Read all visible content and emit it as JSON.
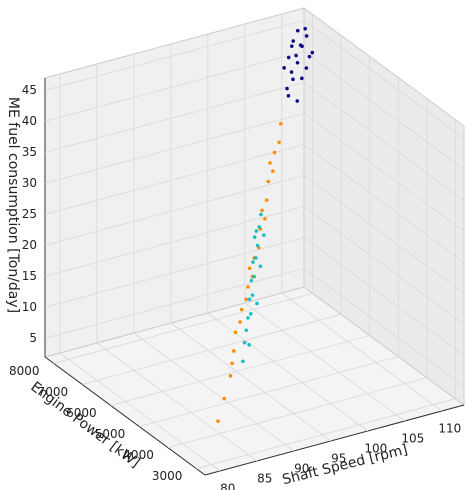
{
  "chart_data": {
    "type": "scatter3d",
    "xlabel": "Shaft Speed [rpm]",
    "ylabel": "Engine Power [kW]",
    "zlabel": "ME fuel consumption [Ton/day]",
    "xlim": [
      78,
      113
    ],
    "ylim": [
      2700,
      8300
    ],
    "zlim": [
      2,
      47
    ],
    "xticks": [
      80,
      85,
      90,
      95,
      100,
      105,
      110
    ],
    "yticks": [
      3000,
      4000,
      5000,
      6000,
      7000,
      8000
    ],
    "zticks": [
      5,
      10,
      15,
      20,
      25,
      30,
      35,
      40,
      45
    ],
    "grid": true,
    "series": [
      {
        "color": "#0b0b85",
        "x": [
          108,
          109,
          110,
          111,
          112,
          109,
          110,
          111,
          112,
          108,
          110,
          111,
          109,
          112,
          110,
          111,
          108,
          109,
          110,
          112
        ],
        "y": [
          7600,
          7700,
          7800,
          7900,
          8000,
          7650,
          7750,
          7850,
          7950,
          7550,
          7900,
          7700,
          7800,
          7850,
          7600,
          8000,
          7700,
          7500,
          7950,
          7750
        ],
        "z": [
          38,
          40,
          42,
          43,
          45,
          39,
          41,
          43,
          44,
          37,
          44,
          40,
          42,
          41,
          39,
          45,
          41,
          36,
          43,
          42
        ]
      },
      {
        "color": "#ff8c00",
        "x": [
          84,
          86,
          88,
          89,
          90,
          91,
          92,
          93,
          95,
          96,
          97,
          98,
          99,
          100,
          101,
          102,
          103,
          104,
          105,
          106,
          94,
          96,
          100,
          103
        ],
        "y": [
          3800,
          4100,
          4400,
          4600,
          4800,
          5000,
          5100,
          5300,
          5600,
          5700,
          5900,
          6000,
          6200,
          6300,
          6500,
          6700,
          6800,
          7000,
          7100,
          7300,
          5400,
          5800,
          6400,
          6900
        ],
        "z": [
          5,
          7,
          9,
          10,
          11,
          13,
          14,
          15,
          17,
          18,
          20,
          21,
          23,
          24,
          26,
          28,
          29,
          31,
          32,
          34,
          16,
          19,
          25,
          30
        ]
      },
      {
        "color": "#17bfc4",
        "x": [
          92,
          93,
          94,
          95,
          95,
          96,
          96,
          97,
          97,
          98,
          98,
          99,
          99,
          100,
          100,
          101,
          94,
          97,
          99,
          101
        ],
        "y": [
          5000,
          5200,
          5400,
          5500,
          5600,
          5700,
          5800,
          5900,
          6000,
          6100,
          6200,
          6300,
          6400,
          6500,
          6600,
          6700,
          5300,
          5800,
          6200,
          6600
        ],
        "z": [
          8,
          10,
          11,
          13,
          12,
          15,
          14,
          17,
          16,
          19,
          18,
          20,
          21,
          22,
          21,
          23,
          9,
          13,
          17,
          20
        ]
      }
    ]
  }
}
